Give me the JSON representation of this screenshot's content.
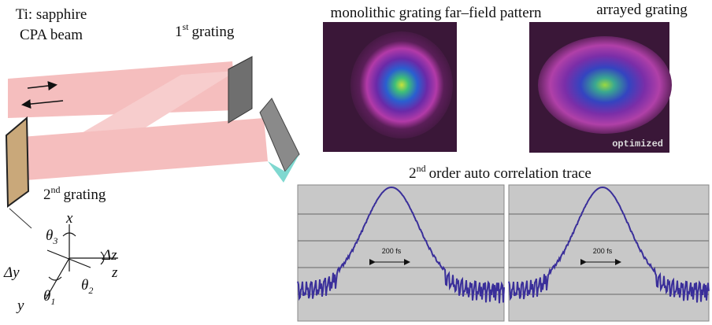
{
  "setup": {
    "source": {
      "line1": "Ti: sapphire",
      "line2": "CPA beam"
    },
    "grating1": {
      "number": "1",
      "suffix": "st",
      "text": "grating"
    },
    "grating2": {
      "number": "2",
      "suffix": "nd",
      "text": "grating"
    },
    "axes": {
      "x": "x",
      "y": "y",
      "z": "z",
      "dy": "Δy",
      "dz": "Δz",
      "theta1": {
        "symbol": "θ",
        "sub": "1"
      },
      "theta2": {
        "symbol": "θ",
        "sub": "2"
      },
      "theta3": {
        "symbol": "θ",
        "sub": "3"
      }
    }
  },
  "far_field": {
    "title": "far–field pattern",
    "left": "monolithic grating",
    "right": "arrayed grating",
    "stamp": "optimized"
  },
  "autocorrelation": {
    "title": {
      "number": "2",
      "suffix": "nd",
      "text": "order auto correlation trace"
    },
    "left_width": "200 fs",
    "right_width": "200 fs"
  }
}
